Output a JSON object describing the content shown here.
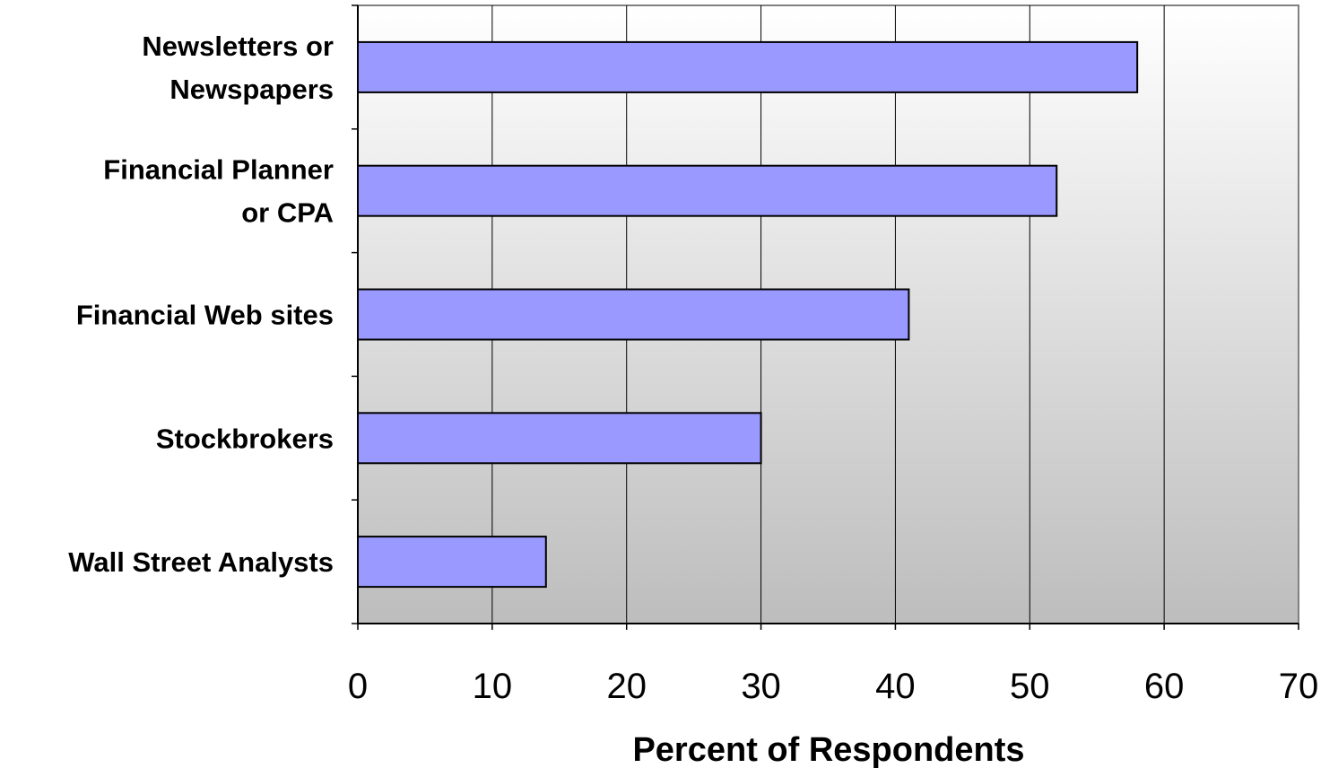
{
  "chart_data": {
    "type": "bar",
    "orientation": "horizontal",
    "categories": [
      [
        "Newsletters or",
        "Newspapers"
      ],
      [
        "Financial Planner",
        "or CPA"
      ],
      [
        "Financial Web sites"
      ],
      [
        "Stockbrokers"
      ],
      [
        "Wall Street Analysts"
      ]
    ],
    "values": [
      58,
      52,
      41,
      30,
      14
    ],
    "xlabel": "Percent of Respondents",
    "ylabel": "",
    "title": "",
    "xlim": [
      0,
      70
    ],
    "xticks": [
      "0",
      "10",
      "20",
      "30",
      "40",
      "50",
      "60",
      "70"
    ],
    "grid": "vertical",
    "legend": "none",
    "colors": {
      "bar_fill": "#9999ff",
      "bar_stroke": "#000000",
      "plot_bg_top": "#ffffff",
      "plot_bg_bottom": "#bdbdbd",
      "gridline": "#000000"
    }
  }
}
